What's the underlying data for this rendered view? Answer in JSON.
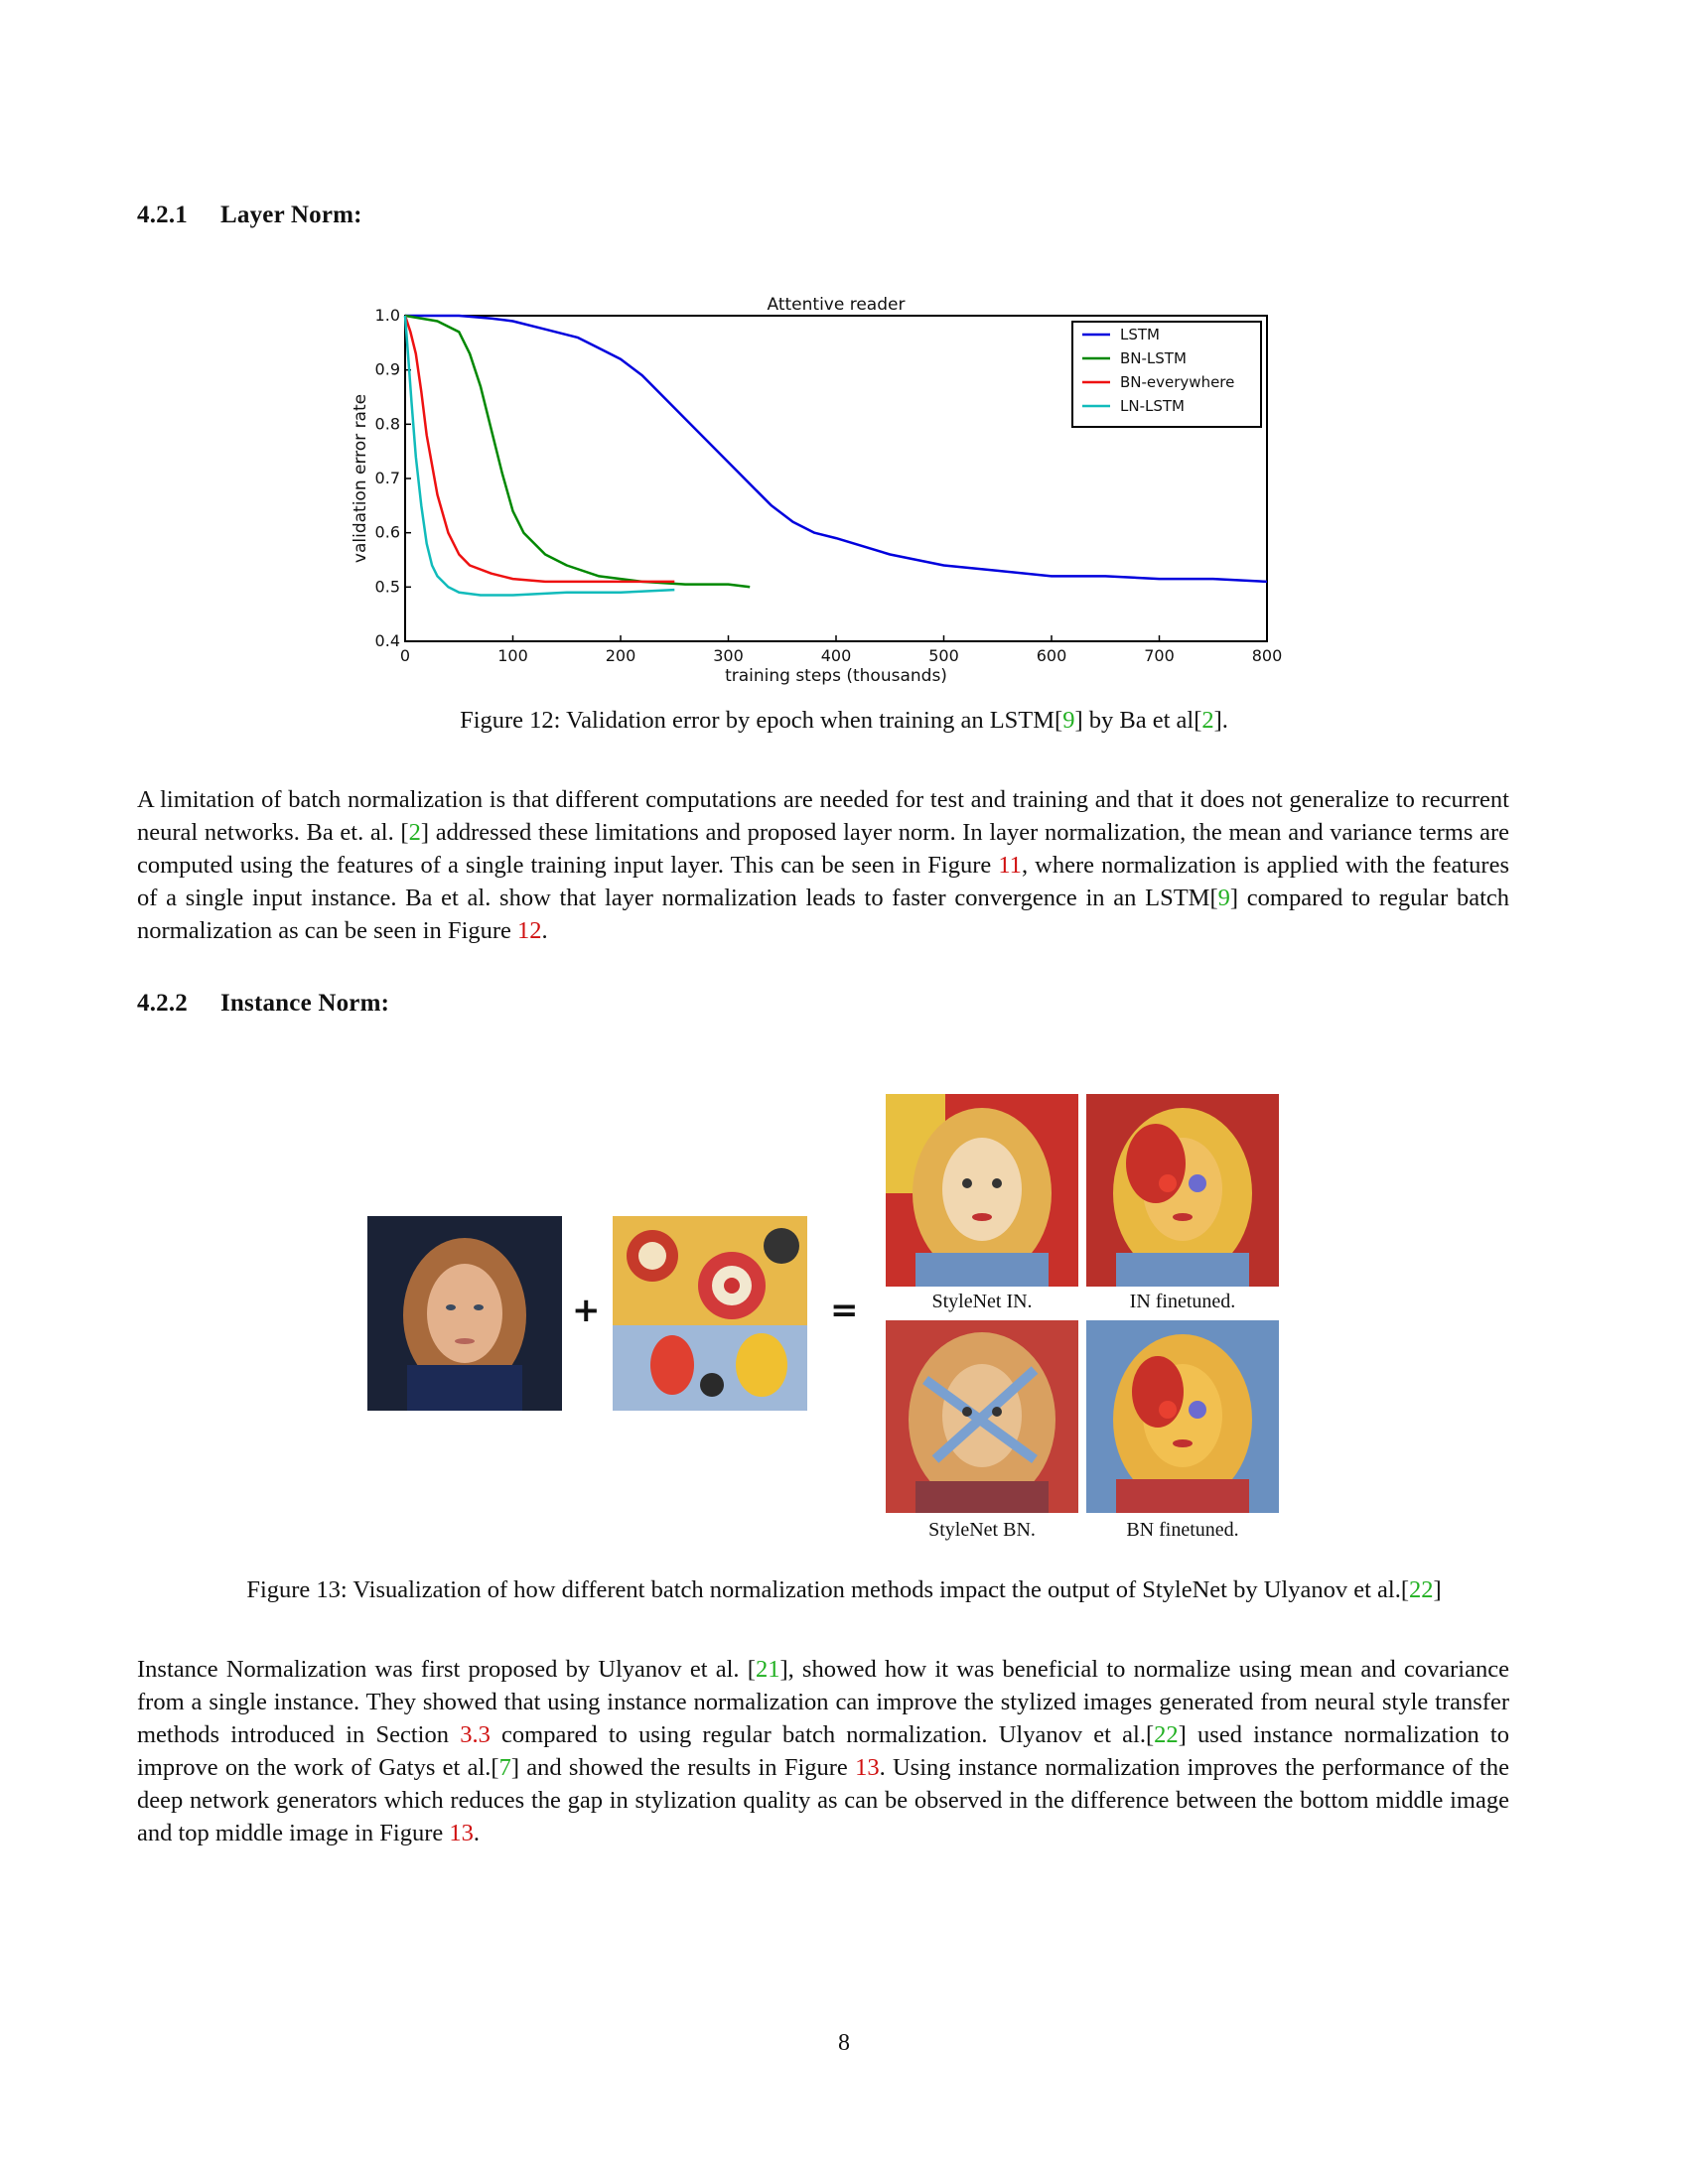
{
  "sections": {
    "layer_norm": {
      "number": "4.2.1",
      "title": "Layer Norm:"
    },
    "instance_norm": {
      "number": "4.2.2",
      "title": "Instance Norm:"
    }
  },
  "figure12": {
    "caption_pre": "Figure 12: Validation error by epoch when training an LSTM[",
    "ref1": "9",
    "caption_mid": "] by Ba et al[",
    "ref2": "2",
    "caption_post": "]."
  },
  "chart_data": {
    "type": "line",
    "title": "Attentive reader",
    "xlabel": "training steps (thousands)",
    "ylabel": "validation error rate",
    "xlim": [
      0,
      800
    ],
    "ylim": [
      0.4,
      1.0
    ],
    "xticks": [
      "0",
      "100",
      "200",
      "300",
      "400",
      "500",
      "600",
      "700",
      "800"
    ],
    "yticks": [
      "0.4",
      "0.5",
      "0.6",
      "0.7",
      "0.8",
      "0.9",
      "1.0"
    ],
    "legend_position": "top-right",
    "series": [
      {
        "name": "LSTM",
        "color": "#0000dd",
        "x": [
          0,
          50,
          80,
          100,
          130,
          160,
          180,
          200,
          220,
          240,
          260,
          280,
          300,
          320,
          340,
          360,
          380,
          400,
          450,
          500,
          550,
          600,
          650,
          700,
          750,
          800
        ],
        "y": [
          1.0,
          1.0,
          0.995,
          0.99,
          0.975,
          0.96,
          0.94,
          0.92,
          0.89,
          0.85,
          0.81,
          0.77,
          0.73,
          0.69,
          0.65,
          0.62,
          0.6,
          0.59,
          0.56,
          0.54,
          0.53,
          0.52,
          0.52,
          0.515,
          0.515,
          0.51
        ]
      },
      {
        "name": "BN-LSTM",
        "color": "#008800",
        "x": [
          0,
          30,
          50,
          60,
          70,
          80,
          90,
          100,
          110,
          130,
          150,
          180,
          220,
          260,
          300,
          320
        ],
        "y": [
          1.0,
          0.99,
          0.97,
          0.93,
          0.87,
          0.79,
          0.71,
          0.64,
          0.6,
          0.56,
          0.54,
          0.52,
          0.51,
          0.505,
          0.505,
          0.5
        ]
      },
      {
        "name": "BN-everywhere",
        "color": "#ee1111",
        "x": [
          0,
          5,
          10,
          15,
          20,
          30,
          40,
          50,
          60,
          80,
          100,
          130,
          170,
          220,
          250
        ],
        "y": [
          1.0,
          0.97,
          0.93,
          0.86,
          0.78,
          0.67,
          0.6,
          0.56,
          0.54,
          0.525,
          0.515,
          0.51,
          0.51,
          0.51,
          0.51
        ]
      },
      {
        "name": "LN-LSTM",
        "color": "#11bbbb",
        "x": [
          0,
          3,
          6,
          10,
          15,
          20,
          25,
          30,
          40,
          50,
          70,
          100,
          150,
          200,
          250
        ],
        "y": [
          1.0,
          0.92,
          0.84,
          0.74,
          0.65,
          0.58,
          0.54,
          0.52,
          0.5,
          0.49,
          0.485,
          0.485,
          0.49,
          0.49,
          0.495
        ]
      }
    ]
  },
  "para1": {
    "t1": "A limitation of batch normalization is that different computations are needed for test and training and that it does not generalize to recurrent neural networks. Ba et. al. [",
    "r1": "2",
    "t2": "] addressed these limitations and proposed layer norm. In layer normalization, the mean and variance terms are computed using the features of a single training input layer. This can be seen in Figure ",
    "r2": "11",
    "t3": ", where normalization is applied with the features of a single input instance. Ba et al. show that layer normalization leads to faster convergence in an LSTM[",
    "r3": "9",
    "t4": "] compared to regular batch normalization as can be seen in Figure ",
    "r4": "12",
    "t5": "."
  },
  "figure13": {
    "plus": "+",
    "equals": "=",
    "labels": [
      "StyleNet IN.",
      "IN finetuned.",
      "StyleNet BN.",
      "BN finetuned."
    ],
    "caption_pre": "Figure 13: Visualization of how different batch normalization methods impact the output of StyleNet by Ulyanov et al.[",
    "ref": "22",
    "caption_post": "]"
  },
  "para2": {
    "t1": "Instance Normalization was first proposed by Ulyanov et al. [",
    "r1": "21",
    "t2": "], showed how it was beneficial to normalize using mean and covariance from a single instance. They showed that using instance normalization can improve the stylized images generated from neural style transfer methods introduced in Section ",
    "r2": "3.3",
    "t3": " compared to using regular batch normalization. Ulyanov et al.[",
    "r3": "22",
    "t4": "] used instance normalization to improve on the work of Gatys et al.[",
    "r4": "7",
    "t5": "] and showed the results in Figure ",
    "r5": "13",
    "t6": ". Using instance normalization improves the performance of the deep network generators which reduces the gap in stylization quality as can be observed in the difference between the bottom middle image and top middle image in Figure ",
    "r6": "13",
    "t7": "."
  },
  "page_number": "8"
}
